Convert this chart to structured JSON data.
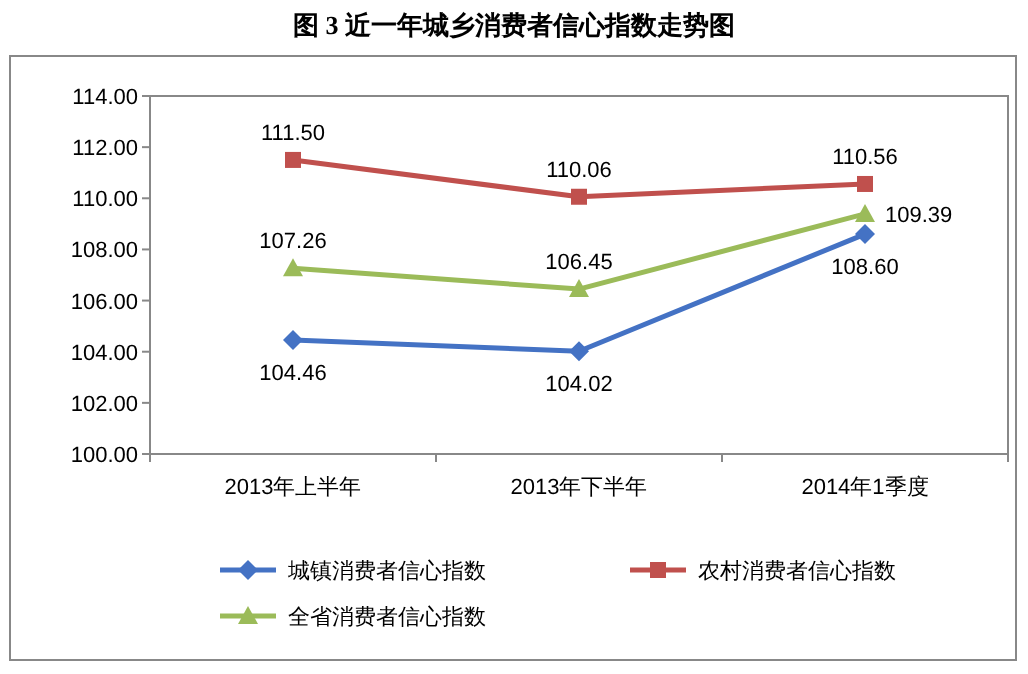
{
  "chart_data": {
    "type": "line",
    "title": "图 3  近一年城乡消费者信心指数走势图",
    "categories": [
      "2013年上半年",
      "2013年下半年",
      "2014年1季度"
    ],
    "series": [
      {
        "name": "城镇消费者信心指数",
        "color": "#4472c4",
        "marker": "diamond",
        "values": [
          104.46,
          104.02,
          108.6
        ],
        "value_labels": [
          "104.46",
          "104.02",
          "108.60"
        ]
      },
      {
        "name": "农村消费者信心指数",
        "color": "#c0504d",
        "marker": "square",
        "values": [
          111.5,
          110.06,
          110.56
        ],
        "value_labels": [
          "111.50",
          "110.06",
          "110.56"
        ]
      },
      {
        "name": "全省消费者信心指数",
        "color": "#9bbb59",
        "marker": "triangle",
        "values": [
          107.26,
          106.45,
          109.39
        ],
        "value_labels": [
          "107.26",
          "106.45",
          "109.39"
        ]
      }
    ],
    "ylim": [
      100,
      114
    ],
    "yticks": [
      {
        "value": 100,
        "label": "100.00"
      },
      {
        "value": 102,
        "label": "102.00"
      },
      {
        "value": 104,
        "label": "104.00"
      },
      {
        "value": 106,
        "label": "106.00"
      },
      {
        "value": 108,
        "label": "108.00"
      },
      {
        "value": 110,
        "label": "110.00"
      },
      {
        "value": 112,
        "label": "112.00"
      },
      {
        "value": 114,
        "label": "114.00"
      }
    ],
    "grid": false,
    "legend": "bottom",
    "line_style": "solid"
  }
}
